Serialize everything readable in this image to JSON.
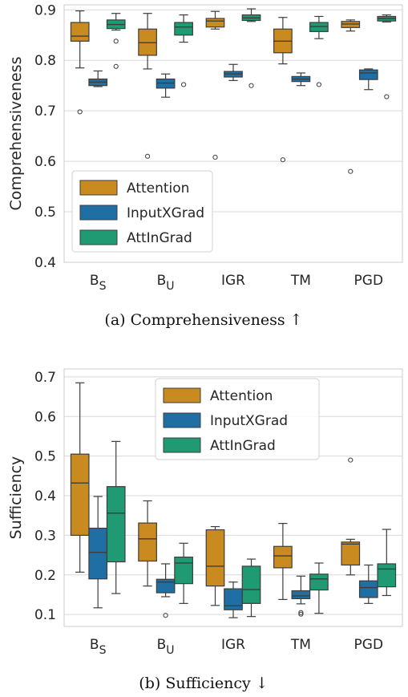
{
  "chart_data": [
    {
      "type": "box",
      "caption": "(a) Comprehensiveness ↑",
      "ylabel": "Comprehensiveness",
      "ylim": [
        0.4,
        0.91
      ],
      "yticks": [
        0.4,
        0.5,
        0.6,
        0.7,
        0.8,
        0.9
      ],
      "grid": true,
      "legend_position": "lower-left",
      "categories": [
        {
          "base": "B",
          "sub": "S"
        },
        {
          "base": "B",
          "sub": "U"
        },
        {
          "base": "IGR",
          "sub": ""
        },
        {
          "base": "TM",
          "sub": ""
        },
        {
          "base": "PGD",
          "sub": ""
        }
      ],
      "series": [
        {
          "name": "Attention",
          "color": "#c98a1f",
          "boxes": [
            {
              "whislo": 0.785,
              "q1": 0.838,
              "med": 0.848,
              "q3": 0.875,
              "whishi": 0.898,
              "fliers": [
                0.698
              ]
            },
            {
              "whislo": 0.783,
              "q1": 0.81,
              "med": 0.835,
              "q3": 0.862,
              "whishi": 0.893,
              "fliers": [
                0.61
              ]
            },
            {
              "whislo": 0.862,
              "q1": 0.866,
              "med": 0.878,
              "q3": 0.883,
              "whishi": 0.897,
              "fliers": [
                0.608
              ]
            },
            {
              "whislo": 0.793,
              "q1": 0.815,
              "med": 0.838,
              "q3": 0.862,
              "whishi": 0.885,
              "fliers": [
                0.603
              ]
            },
            {
              "whislo": 0.858,
              "q1": 0.865,
              "med": 0.872,
              "q3": 0.877,
              "whishi": 0.88,
              "fliers": [
                0.58
              ]
            }
          ]
        },
        {
          "name": "InputXGrad",
          "color": "#1f6fa5",
          "boxes": [
            {
              "whislo": 0.748,
              "q1": 0.75,
              "med": 0.757,
              "q3": 0.763,
              "whishi": 0.779,
              "fliers": []
            },
            {
              "whislo": 0.727,
              "q1": 0.745,
              "med": 0.755,
              "q3": 0.763,
              "whishi": 0.773,
              "fliers": []
            },
            {
              "whislo": 0.76,
              "q1": 0.767,
              "med": 0.773,
              "q3": 0.778,
              "whishi": 0.792,
              "fliers": []
            },
            {
              "whislo": 0.75,
              "q1": 0.758,
              "med": 0.763,
              "q3": 0.768,
              "whishi": 0.775,
              "fliers": []
            },
            {
              "whislo": 0.742,
              "q1": 0.762,
              "med": 0.775,
              "q3": 0.781,
              "whishi": 0.783,
              "fliers": []
            }
          ]
        },
        {
          "name": "AttInGrad",
          "color": "#1f9a72",
          "boxes": [
            {
              "whislo": 0.86,
              "q1": 0.863,
              "med": 0.871,
              "q3": 0.88,
              "whishi": 0.893,
              "fliers": [
                0.838,
                0.788
              ]
            },
            {
              "whislo": 0.836,
              "q1": 0.85,
              "med": 0.866,
              "q3": 0.875,
              "whishi": 0.89,
              "fliers": [
                0.752
              ]
            },
            {
              "whislo": 0.877,
              "q1": 0.879,
              "med": 0.884,
              "q3": 0.89,
              "whishi": 0.902,
              "fliers": [
                0.75
              ]
            },
            {
              "whislo": 0.843,
              "q1": 0.857,
              "med": 0.867,
              "q3": 0.875,
              "whishi": 0.887,
              "fliers": [
                0.752
              ]
            },
            {
              "whislo": 0.876,
              "q1": 0.878,
              "med": 0.883,
              "q3": 0.887,
              "whishi": 0.89,
              "fliers": [
                0.728
              ]
            }
          ]
        }
      ]
    },
    {
      "type": "box",
      "caption": "(b) Sufficiency ↓",
      "ylabel": "Sufficiency",
      "ylim": [
        0.07,
        0.72
      ],
      "yticks": [
        0.1,
        0.2,
        0.3,
        0.4,
        0.5,
        0.6,
        0.7
      ],
      "grid": true,
      "legend_position": "upper-center",
      "categories": [
        {
          "base": "B",
          "sub": "S"
        },
        {
          "base": "B",
          "sub": "U"
        },
        {
          "base": "IGR",
          "sub": ""
        },
        {
          "base": "TM",
          "sub": ""
        },
        {
          "base": "PGD",
          "sub": ""
        }
      ],
      "series": [
        {
          "name": "Attention",
          "color": "#c98a1f",
          "boxes": [
            {
              "whislo": 0.207,
              "q1": 0.3,
              "med": 0.432,
              "q3": 0.505,
              "whishi": 0.685,
              "fliers": []
            },
            {
              "whislo": 0.172,
              "q1": 0.235,
              "med": 0.291,
              "q3": 0.331,
              "whishi": 0.387,
              "fliers": []
            },
            {
              "whislo": 0.123,
              "q1": 0.172,
              "med": 0.222,
              "q3": 0.314,
              "whishi": 0.322,
              "fliers": []
            },
            {
              "whislo": 0.138,
              "q1": 0.218,
              "med": 0.248,
              "q3": 0.272,
              "whishi": 0.33,
              "fliers": []
            },
            {
              "whislo": 0.2,
              "q1": 0.225,
              "med": 0.278,
              "q3": 0.283,
              "whishi": 0.29,
              "fliers": [
                0.49
              ]
            }
          ]
        },
        {
          "name": "InputXGrad",
          "color": "#1f6fa5",
          "boxes": [
            {
              "whislo": 0.117,
              "q1": 0.19,
              "med": 0.257,
              "q3": 0.318,
              "whishi": 0.398,
              "fliers": []
            },
            {
              "whislo": 0.145,
              "q1": 0.155,
              "med": 0.182,
              "q3": 0.189,
              "whishi": 0.228,
              "fliers": [
                0.098
              ]
            },
            {
              "whislo": 0.092,
              "q1": 0.112,
              "med": 0.122,
              "q3": 0.165,
              "whishi": 0.182,
              "fliers": []
            },
            {
              "whislo": 0.127,
              "q1": 0.14,
              "med": 0.147,
              "q3": 0.16,
              "whishi": 0.197,
              "fliers": [
                0.105,
                0.101
              ]
            },
            {
              "whislo": 0.128,
              "q1": 0.143,
              "med": 0.168,
              "q3": 0.185,
              "whishi": 0.225,
              "fliers": []
            }
          ]
        },
        {
          "name": "AttInGrad",
          "color": "#1f9a72",
          "boxes": [
            {
              "whislo": 0.153,
              "q1": 0.233,
              "med": 0.356,
              "q3": 0.423,
              "whishi": 0.537,
              "fliers": []
            },
            {
              "whislo": 0.128,
              "q1": 0.178,
              "med": 0.23,
              "q3": 0.245,
              "whishi": 0.28,
              "fliers": []
            },
            {
              "whislo": 0.095,
              "q1": 0.128,
              "med": 0.163,
              "q3": 0.222,
              "whishi": 0.24,
              "fliers": []
            },
            {
              "whislo": 0.103,
              "q1": 0.162,
              "med": 0.19,
              "q3": 0.202,
              "whishi": 0.23,
              "fliers": []
            },
            {
              "whislo": 0.148,
              "q1": 0.17,
              "med": 0.215,
              "q3": 0.228,
              "whishi": 0.315,
              "fliers": []
            }
          ]
        }
      ]
    }
  ]
}
